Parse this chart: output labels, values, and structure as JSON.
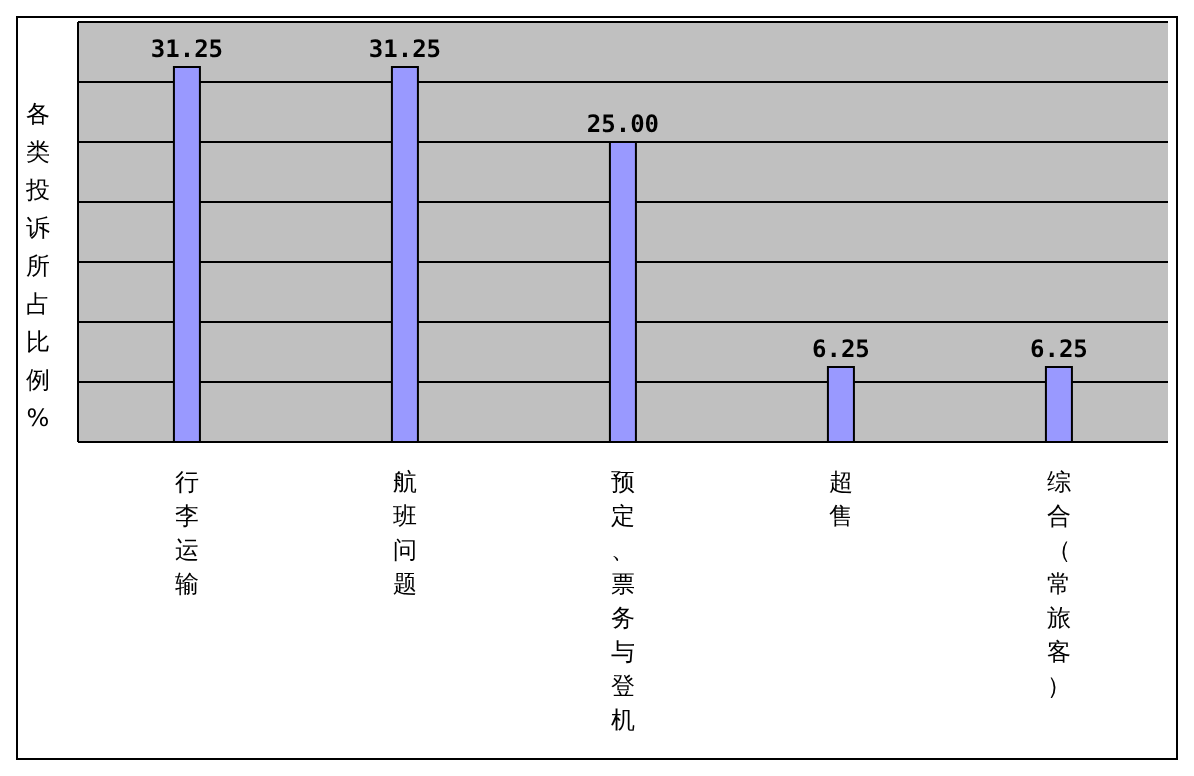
{
  "chart_data": {
    "type": "bar",
    "ylabel": "各类投诉所占比例%",
    "categories": [
      "行李运输",
      "航班问题",
      "预定、票务与登机",
      "超售",
      "综合（常旅客）"
    ],
    "values": [
      31.25,
      31.25,
      25,
      6.25,
      6.25
    ],
    "value_labels": [
      "31.25",
      "31.25",
      "25.00",
      "6.25",
      "6.25"
    ],
    "color": "#9999ff",
    "tick_labels": "x",
    "grid": "y",
    "legend": false
  }
}
